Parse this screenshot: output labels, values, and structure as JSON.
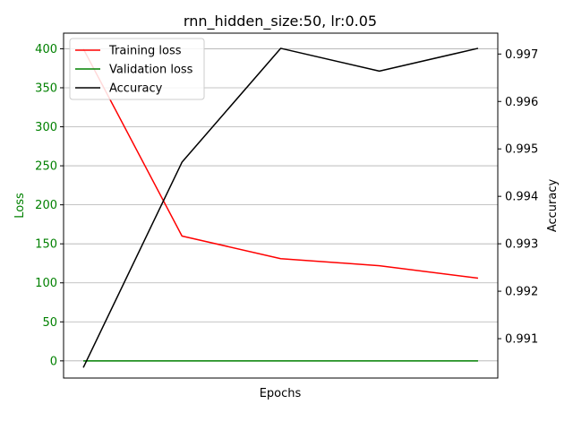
{
  "chart_data": {
    "type": "line",
    "title": "rnn_hidden_size:50, lr:0.05",
    "xlabel": "Epochs",
    "ylabel_left": "Loss",
    "ylabel_right": "Accuracy",
    "x": [
      1,
      2,
      3,
      4,
      5
    ],
    "xlim": [
      0.8,
      5.2
    ],
    "ylim_left": [
      -22,
      420
    ],
    "ylim_right": [
      0.99017,
      0.99744
    ],
    "yticks_left": [
      0,
      50,
      100,
      150,
      200,
      250,
      300,
      350,
      400
    ],
    "yticks_right": [
      0.991,
      0.992,
      0.993,
      0.994,
      0.995,
      0.996,
      0.997
    ],
    "grid": "horizontal",
    "legend_position": "top-left",
    "colors": {
      "left_axis": "#008000",
      "right_axis": "#000000"
    },
    "series": [
      {
        "name": "Training loss",
        "axis": "left",
        "color": "#ff0000",
        "values": [
          400,
          160,
          131,
          122,
          106
        ]
      },
      {
        "name": "Validation loss",
        "axis": "left",
        "color": "#008000",
        "values": [
          0,
          0,
          0,
          0,
          0
        ]
      },
      {
        "name": "Accuracy",
        "axis": "right",
        "color": "#000000",
        "values": [
          0.99039,
          0.99472,
          0.99712,
          0.99664,
          0.99712
        ]
      }
    ]
  }
}
